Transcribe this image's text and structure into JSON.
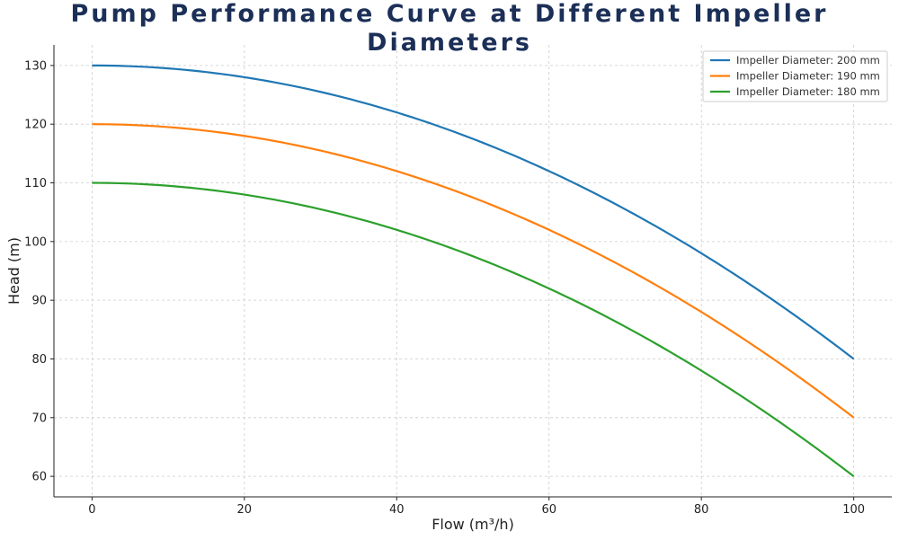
{
  "colors": {
    "title": "#1b2f57",
    "grid": "#cccccc",
    "axis": "#222222"
  },
  "chart_data": {
    "type": "line",
    "title": "Pump Performance Curve at Different Impeller Diameters",
    "xlabel": "Flow (m³/h)",
    "ylabel": "Head (m)",
    "xlim": [
      -5,
      105
    ],
    "ylim": [
      56.5,
      133.5
    ],
    "xticks": [
      0,
      20,
      40,
      60,
      80,
      100
    ],
    "yticks": [
      60,
      70,
      80,
      90,
      100,
      110,
      120,
      130
    ],
    "grid": true,
    "legend_position": "top-right",
    "x": [
      0,
      10,
      20,
      30,
      40,
      50,
      60,
      70,
      80,
      90,
      100
    ],
    "series": [
      {
        "name": "Impeller Diameter: 200 mm",
        "color": "#1f77b4",
        "values": [
          130,
          129.5,
          128,
          125.5,
          122,
          117.5,
          112,
          105.5,
          98,
          89.5,
          80
        ]
      },
      {
        "name": "Impeller Diameter: 190 mm",
        "color": "#ff7f0e",
        "values": [
          120,
          119.5,
          118,
          115.5,
          112,
          107.5,
          102,
          95.5,
          88,
          79.5,
          70
        ]
      },
      {
        "name": "Impeller Diameter: 180 mm",
        "color": "#2ca02c",
        "values": [
          110,
          109.5,
          108,
          105.5,
          102,
          97.5,
          92,
          85.5,
          78,
          69.5,
          60
        ]
      }
    ]
  }
}
